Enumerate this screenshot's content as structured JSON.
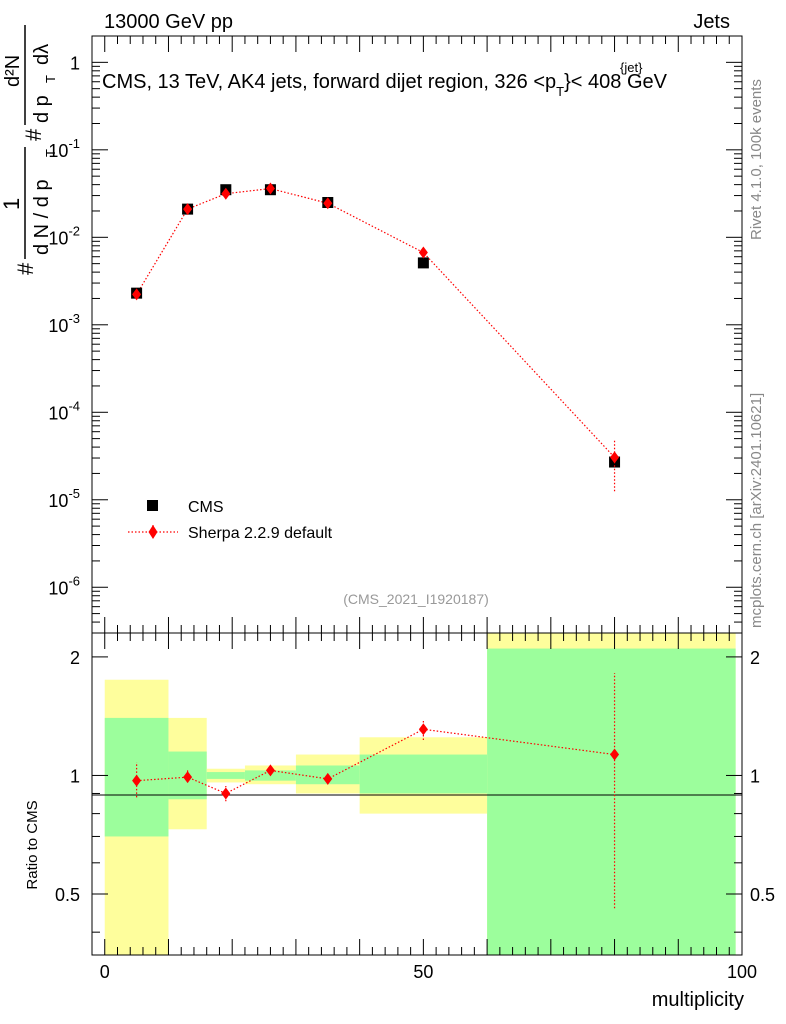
{
  "header": {
    "left": "13000 GeV pp",
    "right": "Jets"
  },
  "title_main": "CMS, 13 TeV, AK4 jets, forward dijet region, 326 <p",
  "title_sup": "{jet}",
  "title_sub": "T",
  "title_end": "}< 408 GeV",
  "side_labels": {
    "rivet": "Rivet 4.1.0,  100k events",
    "mcplots": "mcplots.cern.ch [arXiv:2401.10621]"
  },
  "watermark": "(CMS_2021_I1920187)",
  "chart_data": {
    "type": "scatter",
    "main": {
      "yscale": "log",
      "ylim": [
        3e-07,
        2.0
      ],
      "ylabel_parts": [
        "#",
        "1",
        "d N / d p",
        "T",
        "#",
        "d p",
        "T",
        "dλ",
        "d²N"
      ],
      "yticks": [
        {
          "value": 1e-06,
          "label": "10",
          "exp": "-6"
        },
        {
          "value": 1e-05,
          "label": "10",
          "exp": "-5"
        },
        {
          "value": 0.0001,
          "label": "10",
          "exp": "-4"
        },
        {
          "value": 0.001,
          "label": "10",
          "exp": "-3"
        },
        {
          "value": 0.01,
          "label": "10",
          "exp": "-2"
        },
        {
          "value": 0.1,
          "label": "10",
          "exp": "-1"
        },
        {
          "value": 1,
          "label": "1",
          "exp": ""
        }
      ],
      "series": [
        {
          "name": "CMS",
          "color": "#000000",
          "marker": "square",
          "x": [
            5,
            13,
            19,
            26,
            35,
            50,
            80
          ],
          "y": [
            0.0023,
            0.021,
            0.035,
            0.035,
            0.025,
            0.0051,
            2.7e-05
          ]
        },
        {
          "name": "Sherpa 2.2.9 default",
          "color": "#ff0000",
          "marker": "diamond",
          "line": "dotted",
          "x": [
            5,
            13,
            19,
            26,
            35,
            50,
            80
          ],
          "y": [
            0.00223,
            0.021,
            0.0315,
            0.0361,
            0.0245,
            0.0067,
            3.05e-05
          ],
          "yerr_low": [
            0.00195,
            0.0198,
            0.0301,
            0.0349,
            0.0238,
            0.0063,
            1.25e-05
          ],
          "yerr_high": [
            0.00255,
            0.0222,
            0.0329,
            0.0373,
            0.0252,
            0.0071,
            4.9e-05
          ]
        }
      ]
    },
    "ratio": {
      "ylabel": "Ratio to CMS",
      "ylim": [
        0.35,
        2.3
      ],
      "yticks": [
        {
          "value": 0.5,
          "label": "0.5"
        },
        {
          "value": 1,
          "label": "1"
        },
        {
          "value": 2,
          "label": "2"
        }
      ],
      "bands": [
        {
          "x0": 0,
          "x1": 10,
          "green": [
            0.7,
            1.4
          ],
          "yellow": [
            0.35,
            1.75
          ]
        },
        {
          "x0": 10,
          "x1": 16,
          "green": [
            0.87,
            1.15
          ],
          "yellow": [
            0.73,
            1.4
          ]
        },
        {
          "x0": 16,
          "x1": 22,
          "green": [
            0.98,
            1.02
          ],
          "yellow": [
            0.96,
            1.04
          ]
        },
        {
          "x0": 22,
          "x1": 30,
          "green": [
            0.97,
            1.03
          ],
          "yellow": [
            0.95,
            1.06
          ]
        },
        {
          "x0": 30,
          "x1": 40,
          "green": [
            0.95,
            1.06
          ],
          "yellow": [
            0.9,
            1.13
          ]
        },
        {
          "x0": 40,
          "x1": 60,
          "green": [
            0.9,
            1.13
          ],
          "yellow": [
            0.8,
            1.25
          ]
        },
        {
          "x0": 60,
          "x1": 99,
          "green": [
            0.35,
            2.1
          ],
          "yellow": [
            0.35,
            2.3
          ]
        }
      ],
      "series": {
        "name": "Sherpa 2.2.9 default",
        "x": [
          5,
          13,
          19,
          26,
          35,
          50,
          80
        ],
        "y": [
          0.97,
          0.99,
          0.9,
          1.03,
          0.98,
          1.31,
          1.13
        ],
        "yerr_low": [
          0.88,
          0.96,
          0.86,
          1.01,
          0.95,
          1.23,
          0.46
        ],
        "yerr_high": [
          1.08,
          1.03,
          0.94,
          1.05,
          1.01,
          1.39,
          1.82
        ]
      },
      "colors": {
        "green": "#9cfe9c",
        "yellow": "#fefe9c",
        "line": "#ff0000"
      }
    },
    "xaxis": {
      "xlim": [
        -2,
        100
      ],
      "xlabel": "multiplicity",
      "ticks": [
        0,
        50,
        100
      ],
      "tick_labels": [
        "0",
        "50",
        "100"
      ]
    },
    "legend": [
      {
        "label": "CMS",
        "marker": "square"
      },
      {
        "label": "Sherpa 2.2.9 default",
        "marker": "diamond"
      }
    ]
  }
}
